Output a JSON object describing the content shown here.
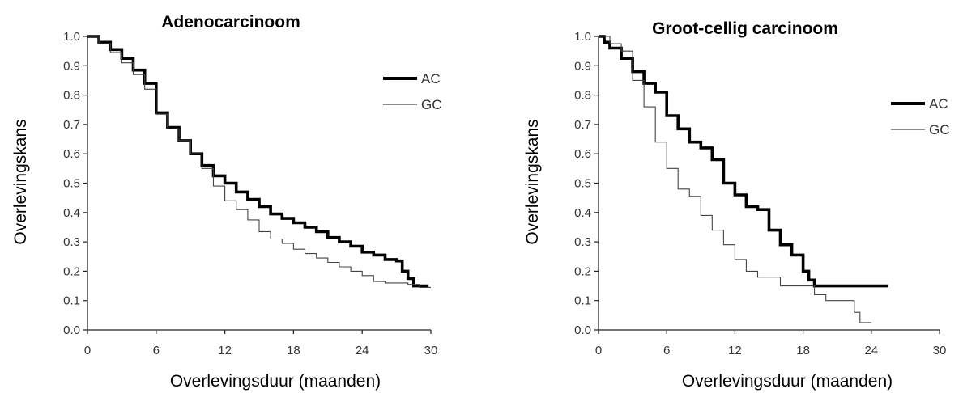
{
  "chart_data": [
    {
      "type": "line",
      "title": "Adenocarcinoom",
      "xlabel": "Overlevingsduur (maanden)",
      "ylabel": "Overlevingskans",
      "xlim": [
        0,
        30
      ],
      "ylim": [
        0,
        1
      ],
      "x_ticks": [
        "0",
        "6",
        "12",
        "18",
        "24",
        "30"
      ],
      "y_ticks": [
        "0.0",
        "0.1",
        "0.2",
        "0.3",
        "0.4",
        "0.5",
        "0.6",
        "0.7",
        "0.8",
        "0.9",
        "1.0"
      ],
      "grid": false,
      "legend_position": "top-right",
      "series": [
        {
          "name": "AC",
          "style": "thick",
          "color": "#000000",
          "points": [
            [
              0,
              1.0
            ],
            [
              1,
              0.98
            ],
            [
              2,
              0.955
            ],
            [
              3,
              0.925
            ],
            [
              4,
              0.885
            ],
            [
              5,
              0.84
            ],
            [
              6,
              0.74
            ],
            [
              7,
              0.69
            ],
            [
              8,
              0.645
            ],
            [
              9,
              0.6
            ],
            [
              10,
              0.56
            ],
            [
              11,
              0.525
            ],
            [
              12,
              0.5
            ],
            [
              13,
              0.47
            ],
            [
              14,
              0.445
            ],
            [
              15,
              0.42
            ],
            [
              16,
              0.395
            ],
            [
              17,
              0.38
            ],
            [
              18,
              0.365
            ],
            [
              19,
              0.35
            ],
            [
              20,
              0.335
            ],
            [
              21,
              0.315
            ],
            [
              22,
              0.3
            ],
            [
              23,
              0.285
            ],
            [
              24,
              0.265
            ],
            [
              25,
              0.255
            ],
            [
              26,
              0.24
            ],
            [
              27,
              0.235
            ],
            [
              27.5,
              0.2
            ],
            [
              28,
              0.175
            ],
            [
              28.5,
              0.15
            ],
            [
              29.8,
              0.15
            ]
          ]
        },
        {
          "name": "GC",
          "style": "thin",
          "color": "#444444",
          "points": [
            [
              0,
              1.0
            ],
            [
              1,
              0.975
            ],
            [
              2,
              0.945
            ],
            [
              3,
              0.91
            ],
            [
              4,
              0.87
            ],
            [
              5,
              0.82
            ],
            [
              6,
              0.735
            ],
            [
              7,
              0.685
            ],
            [
              8,
              0.645
            ],
            [
              9,
              0.6
            ],
            [
              10,
              0.55
            ],
            [
              11,
              0.49
            ],
            [
              12,
              0.44
            ],
            [
              13,
              0.41
            ],
            [
              14,
              0.375
            ],
            [
              15,
              0.335
            ],
            [
              16,
              0.31
            ],
            [
              17,
              0.295
            ],
            [
              18,
              0.275
            ],
            [
              19,
              0.26
            ],
            [
              20,
              0.245
            ],
            [
              21,
              0.23
            ],
            [
              22,
              0.215
            ],
            [
              23,
              0.2
            ],
            [
              24,
              0.185
            ],
            [
              25,
              0.165
            ],
            [
              26,
              0.16
            ],
            [
              27,
              0.16
            ],
            [
              28,
              0.155
            ],
            [
              29,
              0.145
            ],
            [
              30,
              0.145
            ]
          ]
        }
      ]
    },
    {
      "type": "line",
      "title": "Groot-cellig carcinoom",
      "xlabel": "Overlevingsduur (maanden)",
      "ylabel": "Overlevingskans",
      "xlim": [
        0,
        30
      ],
      "ylim": [
        0,
        1
      ],
      "x_ticks": [
        "0",
        "6",
        "12",
        "18",
        "24",
        "30"
      ],
      "y_ticks": [
        "0.0",
        "0.1",
        "0.2",
        "0.3",
        "0.4",
        "0.5",
        "0.6",
        "0.7",
        "0.8",
        "0.9",
        "1.0"
      ],
      "grid": false,
      "legend_position": "top-right",
      "series": [
        {
          "name": "AC",
          "style": "thick",
          "color": "#000000",
          "points": [
            [
              0,
              1.0
            ],
            [
              0.5,
              0.98
            ],
            [
              1,
              0.96
            ],
            [
              2,
              0.925
            ],
            [
              3,
              0.88
            ],
            [
              4,
              0.84
            ],
            [
              5,
              0.81
            ],
            [
              6,
              0.73
            ],
            [
              7,
              0.685
            ],
            [
              8,
              0.64
            ],
            [
              9,
              0.62
            ],
            [
              10,
              0.58
            ],
            [
              11,
              0.5
            ],
            [
              12,
              0.46
            ],
            [
              13,
              0.42
            ],
            [
              14,
              0.41
            ],
            [
              15,
              0.34
            ],
            [
              16,
              0.29
            ],
            [
              17,
              0.255
            ],
            [
              18,
              0.2
            ],
            [
              18.5,
              0.17
            ],
            [
              19,
              0.15
            ],
            [
              25.5,
              0.15
            ]
          ]
        },
        {
          "name": "GC",
          "style": "thin",
          "color": "#444444",
          "points": [
            [
              0,
              1.0
            ],
            [
              1,
              0.975
            ],
            [
              2,
              0.95
            ],
            [
              3,
              0.85
            ],
            [
              4,
              0.76
            ],
            [
              5,
              0.64
            ],
            [
              6,
              0.55
            ],
            [
              7,
              0.48
            ],
            [
              8,
              0.455
            ],
            [
              9,
              0.39
            ],
            [
              10,
              0.34
            ],
            [
              11,
              0.29
            ],
            [
              12,
              0.24
            ],
            [
              13,
              0.2
            ],
            [
              14,
              0.18
            ],
            [
              16,
              0.15
            ],
            [
              18,
              0.15
            ],
            [
              19,
              0.12
            ],
            [
              20,
              0.1
            ],
            [
              21,
              0.1
            ],
            [
              22,
              0.1
            ],
            [
              22.5,
              0.06
            ],
            [
              23,
              0.025
            ],
            [
              24,
              0.025
            ]
          ]
        }
      ]
    }
  ]
}
